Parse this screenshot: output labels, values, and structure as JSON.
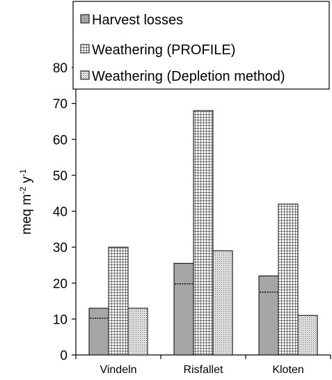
{
  "chart_data": {
    "type": "bar",
    "categories": [
      "Vindeln",
      "Risfallet",
      "Kloten"
    ],
    "series": [
      {
        "name": "Harvest losses",
        "values": [
          13,
          25.5,
          22
        ],
        "pattern": "solid-gray",
        "color": "#a6a6a6"
      },
      {
        "name": "Weathering (PROFILE)",
        "values": [
          30,
          68,
          42
        ],
        "pattern": "grid",
        "color": "#ffffff"
      },
      {
        "name": "Weathering (Depletion method)",
        "values": [
          13,
          29,
          11
        ],
        "pattern": "dots",
        "color": "#e6e6e6"
      }
    ],
    "dotted_markers": [
      10.2,
      19.8,
      17.5
    ],
    "ylabel_main": "meq m",
    "ylabel_sup1": "-2",
    "ylabel_mid": " y",
    "ylabel_sup2": "-1",
    "yticks": [
      0,
      10,
      20,
      30,
      40,
      50,
      60,
      70,
      80
    ],
    "ylim": [
      0,
      80
    ],
    "grid": false,
    "legend_position": "top"
  }
}
